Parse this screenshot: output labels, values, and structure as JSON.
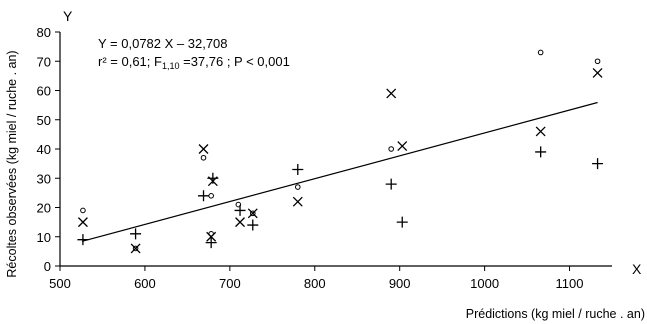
{
  "chart_data": {
    "type": "scatter",
    "title": "",
    "xlabel": "Prédictions (kg miel / ruche . an)",
    "ylabel": "Récoltes observées (kg miel / ruche . an)",
    "x_axis_name": "X",
    "y_axis_name": "Y",
    "xlim": [
      500,
      1150
    ],
    "ylim": [
      0,
      80
    ],
    "x_ticks": [
      500,
      600,
      700,
      800,
      900,
      1000,
      1100
    ],
    "y_ticks": [
      0,
      10,
      20,
      30,
      40,
      50,
      60,
      70,
      80
    ],
    "grid": false,
    "legend": "none",
    "annotation": {
      "equation": "Y = 0,0782 X – 32,708",
      "stats_prefix": "r² = 0,61; F",
      "stats_subscript": "1,10",
      "stats_suffix": " =37,76 ; P < 0,001"
    },
    "regression_line": {
      "slope": 0.0782,
      "intercept": -32.708,
      "x_range": [
        526,
        1133
      ]
    },
    "series": [
      {
        "marker": "circle",
        "points": [
          [
            527,
            19
          ],
          [
            589,
            6
          ],
          [
            669,
            37
          ],
          [
            678,
            11
          ],
          [
            678,
            24
          ],
          [
            710,
            21
          ],
          [
            727,
            18
          ],
          [
            780,
            27
          ],
          [
            890,
            40
          ],
          [
            1066,
            73
          ],
          [
            1133,
            70
          ]
        ]
      },
      {
        "marker": "cross",
        "points": [
          [
            527,
            15
          ],
          [
            589,
            6
          ],
          [
            669,
            40
          ],
          [
            678,
            10
          ],
          [
            680,
            29
          ],
          [
            712,
            15
          ],
          [
            727,
            18
          ],
          [
            780,
            22
          ],
          [
            890,
            59
          ],
          [
            903,
            41
          ],
          [
            1066,
            46
          ],
          [
            1133,
            66
          ]
        ]
      },
      {
        "marker": "plus",
        "points": [
          [
            527,
            9
          ],
          [
            589,
            11
          ],
          [
            669,
            24
          ],
          [
            678,
            8
          ],
          [
            680,
            30
          ],
          [
            712,
            19
          ],
          [
            727,
            14
          ],
          [
            780,
            33
          ],
          [
            890,
            28
          ],
          [
            903,
            15
          ],
          [
            1066,
            39
          ],
          [
            1133,
            35
          ]
        ]
      }
    ]
  }
}
